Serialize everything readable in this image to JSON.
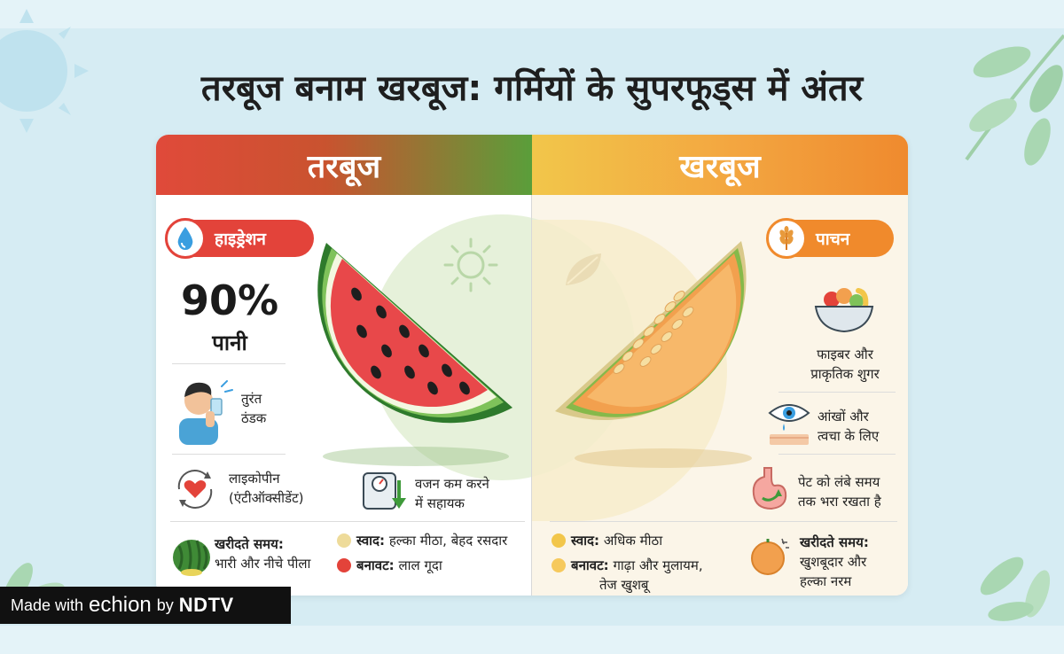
{
  "title": "तरबूज बनाम खरबूज: गर्मियों के सुपरफूड्स में अंतर",
  "left": {
    "header": "तरबूज",
    "badge": "हाइड्रेशन",
    "percent": "90%",
    "percent_label": "पानी",
    "cooling": [
      "तुरंत",
      "ठंडक"
    ],
    "lycopene": [
      "लाइकोपीन",
      "(एंटीऑक्सीडेंट)"
    ],
    "weight": [
      "वजन कम करने",
      "में सहायक"
    ],
    "buying_label": "खरीदते समय:",
    "buying_text": "भारी और नीचे पीला",
    "taste_label": "स्वाद:",
    "taste_text": "हल्का मीठा, बेहद रसदार",
    "texture_label": "बनावट:",
    "texture_text": "लाल गूदा"
  },
  "right": {
    "header": "खरबूज",
    "badge": "पाचन",
    "fiber": [
      "फाइबर और",
      "प्राकृतिक शुगर"
    ],
    "eyes": [
      "आंखों और",
      "त्वचा के लिए"
    ],
    "stomach": [
      "पेट को लंबे समय",
      "तक भरा रखता है"
    ],
    "taste_label": "स्वाद:",
    "taste_text": "अधिक मीठा",
    "texture_label": "बनावट:",
    "texture_text": [
      "गाढ़ा और मुलायम,",
      "तेज खुशबू"
    ],
    "buying_label": "खरीदते समय:",
    "buying_text": [
      "खुशबूदार और",
      "हल्का नरम"
    ]
  },
  "watermark": {
    "made_with": "Made with",
    "brand": "echion",
    "by": "by",
    "company": "NDTV"
  },
  "colors": {
    "watermelon_red": "#e3433a",
    "watermelon_green": "#3e8a34",
    "melon_orange": "#f08a2c",
    "background": "#d6ecf3"
  }
}
